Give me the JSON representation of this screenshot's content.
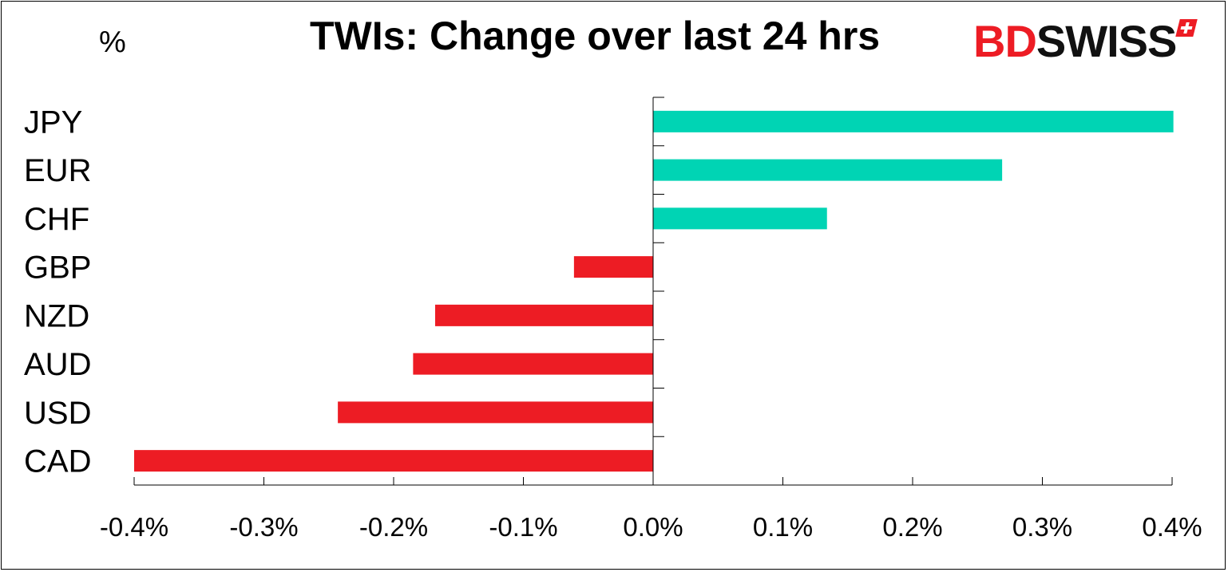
{
  "chart_data": {
    "type": "bar",
    "orientation": "horizontal",
    "title": "TWIs: Change over last 24 hrs",
    "unit_label": "%",
    "categories": [
      "JPY",
      "EUR",
      "CHF",
      "GBP",
      "NZD",
      "AUD",
      "USD",
      "CAD"
    ],
    "values": [
      0.401,
      0.269,
      0.134,
      -0.061,
      -0.168,
      -0.185,
      -0.243,
      -0.4
    ],
    "xlim": [
      -0.4,
      0.4
    ],
    "x_ticks": [
      -0.4,
      -0.3,
      -0.2,
      -0.1,
      0.0,
      0.1,
      0.2,
      0.3,
      0.4
    ],
    "x_tick_labels": [
      "-0.4%",
      "-0.3%",
      "-0.2%",
      "-0.1%",
      "0.0%",
      "0.1%",
      "0.2%",
      "0.3%",
      "0.4%"
    ],
    "grid": false,
    "colors": {
      "positive": "#00d4b4",
      "negative": "#ed1c24"
    }
  },
  "logo": {
    "part1": "BD",
    "part2": "SWISS"
  }
}
